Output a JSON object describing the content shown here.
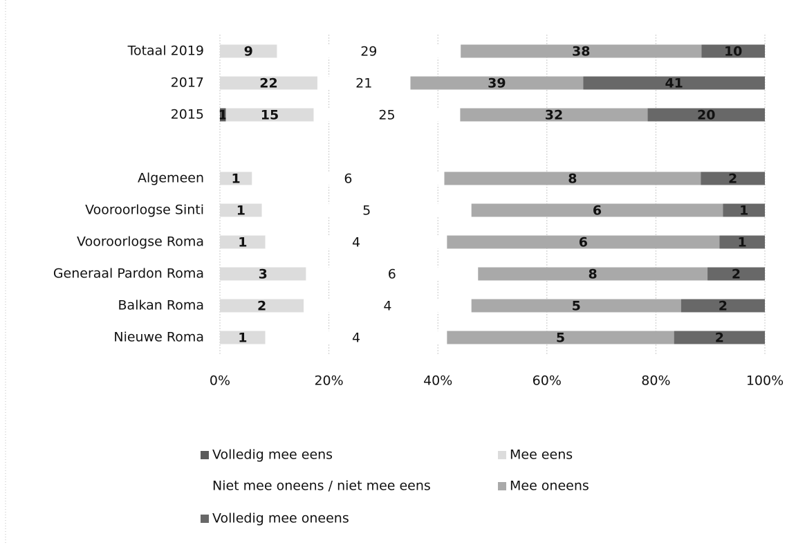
{
  "chart_data": {
    "type": "bar",
    "orientation": "horizontal",
    "stacked": "percent",
    "categories": [
      "Totaal 2019",
      "2017",
      "2015",
      null,
      "Algemeen",
      "Vooroorlogse Sinti",
      "Vooroorlogse Roma",
      "Generaal Pardon Roma",
      "Balkan Roma",
      "Nieuwe Roma"
    ],
    "series": [
      {
        "name": "Volledig mee eens",
        "color": "#5a5a5a",
        "values": [
          null,
          null,
          1,
          null,
          null,
          null,
          null,
          null,
          null,
          null
        ]
      },
      {
        "name": "Mee eens",
        "color": "#dcdcdc",
        "values": [
          9,
          22,
          15,
          null,
          1,
          1,
          1,
          3,
          2,
          1
        ]
      },
      {
        "name": "Niet mee oneens / niet mee eens",
        "color": "#ffffff",
        "values": [
          29,
          21,
          25,
          null,
          6,
          5,
          4,
          6,
          4,
          4
        ]
      },
      {
        "name": "Mee oneens",
        "color": "#a9a9a9",
        "values": [
          38,
          39,
          32,
          null,
          8,
          6,
          6,
          8,
          5,
          5
        ]
      },
      {
        "name": "Volledig mee oneens",
        "color": "#686868",
        "values": [
          10,
          41,
          20,
          null,
          2,
          1,
          1,
          2,
          2,
          2
        ]
      }
    ],
    "xlim": [
      0,
      100
    ],
    "xticks": [
      {
        "value": 0,
        "label": "0%"
      },
      {
        "value": 20,
        "label": "20%"
      },
      {
        "value": 40,
        "label": "40%"
      },
      {
        "value": 60,
        "label": "60%"
      },
      {
        "value": 80,
        "label": "80%"
      },
      {
        "value": 100,
        "label": "100%"
      }
    ],
    "grid": true,
    "legend": "bottom"
  }
}
